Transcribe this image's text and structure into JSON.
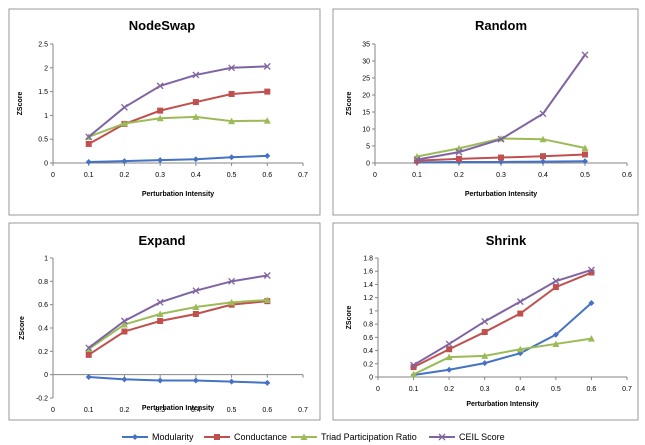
{
  "colors": {
    "Modularity": "#4472c4",
    "Conductance": "#c0504d",
    "Triad Participation Ratio": "#9bbb59",
    "CEIL Score": "#8064a2"
  },
  "markers": {
    "Modularity": "diamond",
    "Conductance": "square",
    "Triad Participation Ratio": "triangle",
    "CEIL Score": "x"
  },
  "legend": {
    "entries": [
      "Modularity",
      "Conductance",
      "Triad Participation Ratio",
      "CEIL Score"
    ]
  },
  "chart_data": [
    {
      "type": "line",
      "title": "NodeSwap",
      "xlabel": "Perturbation Intensity",
      "ylabel": "ZScore",
      "xlim": [
        0,
        0.7
      ],
      "xticks": [
        "0",
        "0.1",
        "0.2",
        "0.3",
        "0.4",
        "0.5",
        "0.6",
        "0.7"
      ],
      "ylim": [
        0,
        2.5
      ],
      "yticks": [
        "0",
        "0.5",
        "1",
        "1.5",
        "2",
        "2.5"
      ],
      "x": [
        0.1,
        0.2,
        0.3,
        0.4,
        0.5,
        0.6
      ],
      "series": [
        {
          "name": "Modularity",
          "values": [
            0.02,
            0.04,
            0.06,
            0.08,
            0.12,
            0.15
          ]
        },
        {
          "name": "Conductance",
          "values": [
            0.4,
            0.82,
            1.1,
            1.28,
            1.45,
            1.5
          ]
        },
        {
          "name": "Triad Participation Ratio",
          "values": [
            0.55,
            0.83,
            0.94,
            0.97,
            0.88,
            0.89
          ]
        },
        {
          "name": "CEIL Score",
          "values": [
            0.55,
            1.17,
            1.62,
            1.85,
            2.0,
            2.03
          ]
        }
      ]
    },
    {
      "type": "line",
      "title": "Random",
      "xlabel": "Perturbation Intensity",
      "ylabel": "ZScore",
      "xlim": [
        0,
        0.6
      ],
      "xticks": [
        "0",
        "0.1",
        "0.2",
        "0.3",
        "0.4",
        "0.5",
        "0.6"
      ],
      "ylim": [
        0,
        35
      ],
      "yticks": [
        "0",
        "5",
        "10",
        "15",
        "20",
        "25",
        "30",
        "35"
      ],
      "x": [
        0.1,
        0.2,
        0.3,
        0.4,
        0.5
      ],
      "series": [
        {
          "name": "Modularity",
          "values": [
            0.2,
            0.3,
            0.3,
            0.4,
            0.5
          ]
        },
        {
          "name": "Conductance",
          "values": [
            0.7,
            1.2,
            1.6,
            2.0,
            2.5
          ]
        },
        {
          "name": "Triad Participation Ratio",
          "values": [
            1.9,
            4.3,
            7.2,
            7.0,
            4.4
          ]
        },
        {
          "name": "CEIL Score",
          "values": [
            1.0,
            3.2,
            7.0,
            14.5,
            31.8
          ]
        }
      ]
    },
    {
      "type": "line",
      "title": "Expand",
      "xlabel": "Perturbation Intensity",
      "ylabel": "ZScore",
      "xlim": [
        0,
        0.7
      ],
      "xticks": [
        "0",
        "0.1",
        "0.2",
        "0.3",
        "0.4",
        "0.5",
        "0.6",
        "0.7"
      ],
      "ylim": [
        -0.2,
        1
      ],
      "yticks": [
        "-0.2",
        "0",
        "0.2",
        "0.4",
        "0.6",
        "0.8",
        "1"
      ],
      "x": [
        0.1,
        0.2,
        0.3,
        0.4,
        0.5,
        0.6
      ],
      "series": [
        {
          "name": "Modularity",
          "values": [
            -0.02,
            -0.04,
            -0.05,
            -0.05,
            -0.06,
            -0.07
          ]
        },
        {
          "name": "Conductance",
          "values": [
            0.17,
            0.37,
            0.46,
            0.52,
            0.6,
            0.63
          ]
        },
        {
          "name": "Triad Participation Ratio",
          "values": [
            0.22,
            0.43,
            0.52,
            0.58,
            0.62,
            0.64
          ]
        },
        {
          "name": "CEIL Score",
          "values": [
            0.23,
            0.46,
            0.62,
            0.72,
            0.8,
            0.85
          ]
        }
      ]
    },
    {
      "type": "line",
      "title": "Shrink",
      "xlabel": "Perturbation Intensity",
      "ylabel": "ZScore",
      "xlim": [
        0,
        0.7
      ],
      "xticks": [
        "0",
        "0.1",
        "0.2",
        "0.3",
        "0.4",
        "0.5",
        "0.6",
        "0.7"
      ],
      "ylim": [
        0,
        1.8
      ],
      "yticks": [
        "0",
        "0.2",
        "0.4",
        "0.6",
        "0.8",
        "1",
        "1.2",
        "1.4",
        "1.6",
        "1.8"
      ],
      "x": [
        0.1,
        0.2,
        0.3,
        0.4,
        0.5,
        0.6
      ],
      "series": [
        {
          "name": "Modularity",
          "values": [
            0.03,
            0.11,
            0.21,
            0.36,
            0.64,
            1.12
          ]
        },
        {
          "name": "Conductance",
          "values": [
            0.15,
            0.42,
            0.68,
            0.96,
            1.36,
            1.58
          ]
        },
        {
          "name": "Triad Participation Ratio",
          "values": [
            0.04,
            0.3,
            0.32,
            0.42,
            0.5,
            0.58
          ]
        },
        {
          "name": "CEIL Score",
          "values": [
            0.18,
            0.5,
            0.84,
            1.14,
            1.45,
            1.62
          ]
        }
      ]
    }
  ]
}
